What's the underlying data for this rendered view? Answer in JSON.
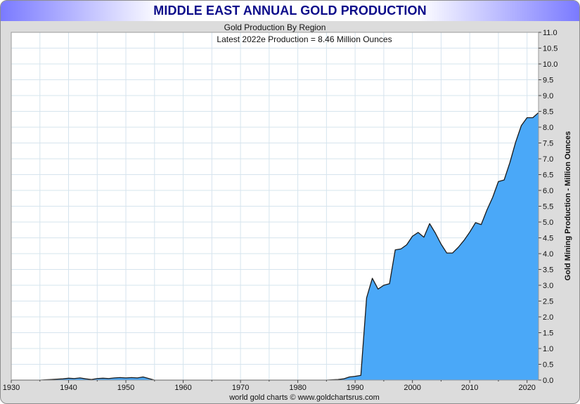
{
  "chart_data": {
    "type": "area",
    "title": "MIDDLE EAST ANNUAL GOLD PRODUCTION",
    "subtitle": "Gold Production By Region",
    "annotation": "Latest 2022e Production = 8.46 Million Ounces",
    "ylabel": "Gold Mining Production - Million Ounces",
    "xlabel": "",
    "footer": "world gold charts © www.goldchartsrus.com",
    "xlim": [
      1930,
      2022
    ],
    "ylim": [
      0,
      11
    ],
    "x_ticks": [
      1930,
      1940,
      1950,
      1960,
      1970,
      1980,
      1990,
      2000,
      2010,
      2020
    ],
    "y_ticks": [
      "0.0",
      "0.5",
      "1.0",
      "1.5",
      "2.0",
      "2.5",
      "3.0",
      "3.5",
      "4.0",
      "4.5",
      "5.0",
      "5.5",
      "6.0",
      "6.5",
      "7.0",
      "7.5",
      "8.0",
      "8.5",
      "9.0",
      "9.5",
      "10.0",
      "10.5",
      "11.0"
    ],
    "grid": true,
    "fill_color": "#4aa8f8",
    "line_color": "#1a1a1a",
    "series": [
      {
        "name": "Middle East",
        "x": [
          1930,
          1935,
          1936,
          1937,
          1938,
          1939,
          1940,
          1941,
          1942,
          1943,
          1944,
          1945,
          1946,
          1947,
          1948,
          1949,
          1950,
          1951,
          1952,
          1953,
          1954,
          1955,
          1956,
          1960,
          1970,
          1980,
          1985,
          1986,
          1987,
          1988,
          1989,
          1990,
          1991,
          1992,
          1993,
          1994,
          1995,
          1996,
          1997,
          1998,
          1999,
          2000,
          2001,
          2002,
          2003,
          2004,
          2005,
          2006,
          2007,
          2008,
          2009,
          2010,
          2011,
          2012,
          2013,
          2014,
          2015,
          2016,
          2017,
          2018,
          2019,
          2020,
          2021,
          2022
        ],
        "values": [
          0,
          0,
          0.01,
          0.02,
          0.03,
          0.04,
          0.06,
          0.05,
          0.07,
          0.04,
          0.02,
          0.05,
          0.06,
          0.05,
          0.07,
          0.08,
          0.07,
          0.08,
          0.07,
          0.1,
          0.05,
          0,
          0,
          0,
          0,
          0,
          0,
          0.01,
          0.02,
          0.04,
          0.1,
          0.12,
          0.15,
          2.6,
          3.22,
          2.88,
          3.0,
          3.05,
          4.12,
          4.15,
          4.28,
          4.55,
          4.67,
          4.52,
          4.95,
          4.65,
          4.3,
          4.02,
          4.02,
          4.2,
          4.42,
          4.68,
          4.98,
          4.92,
          5.38,
          5.78,
          6.28,
          6.33,
          6.88,
          7.52,
          8.05,
          8.3,
          8.3,
          8.46
        ]
      }
    ]
  },
  "colors": {
    "title_text": "#0b0b8a",
    "title_band_edge": "#7a7aff",
    "frame_bg": "#dcdcdc",
    "grid": "#d6e4ee"
  }
}
